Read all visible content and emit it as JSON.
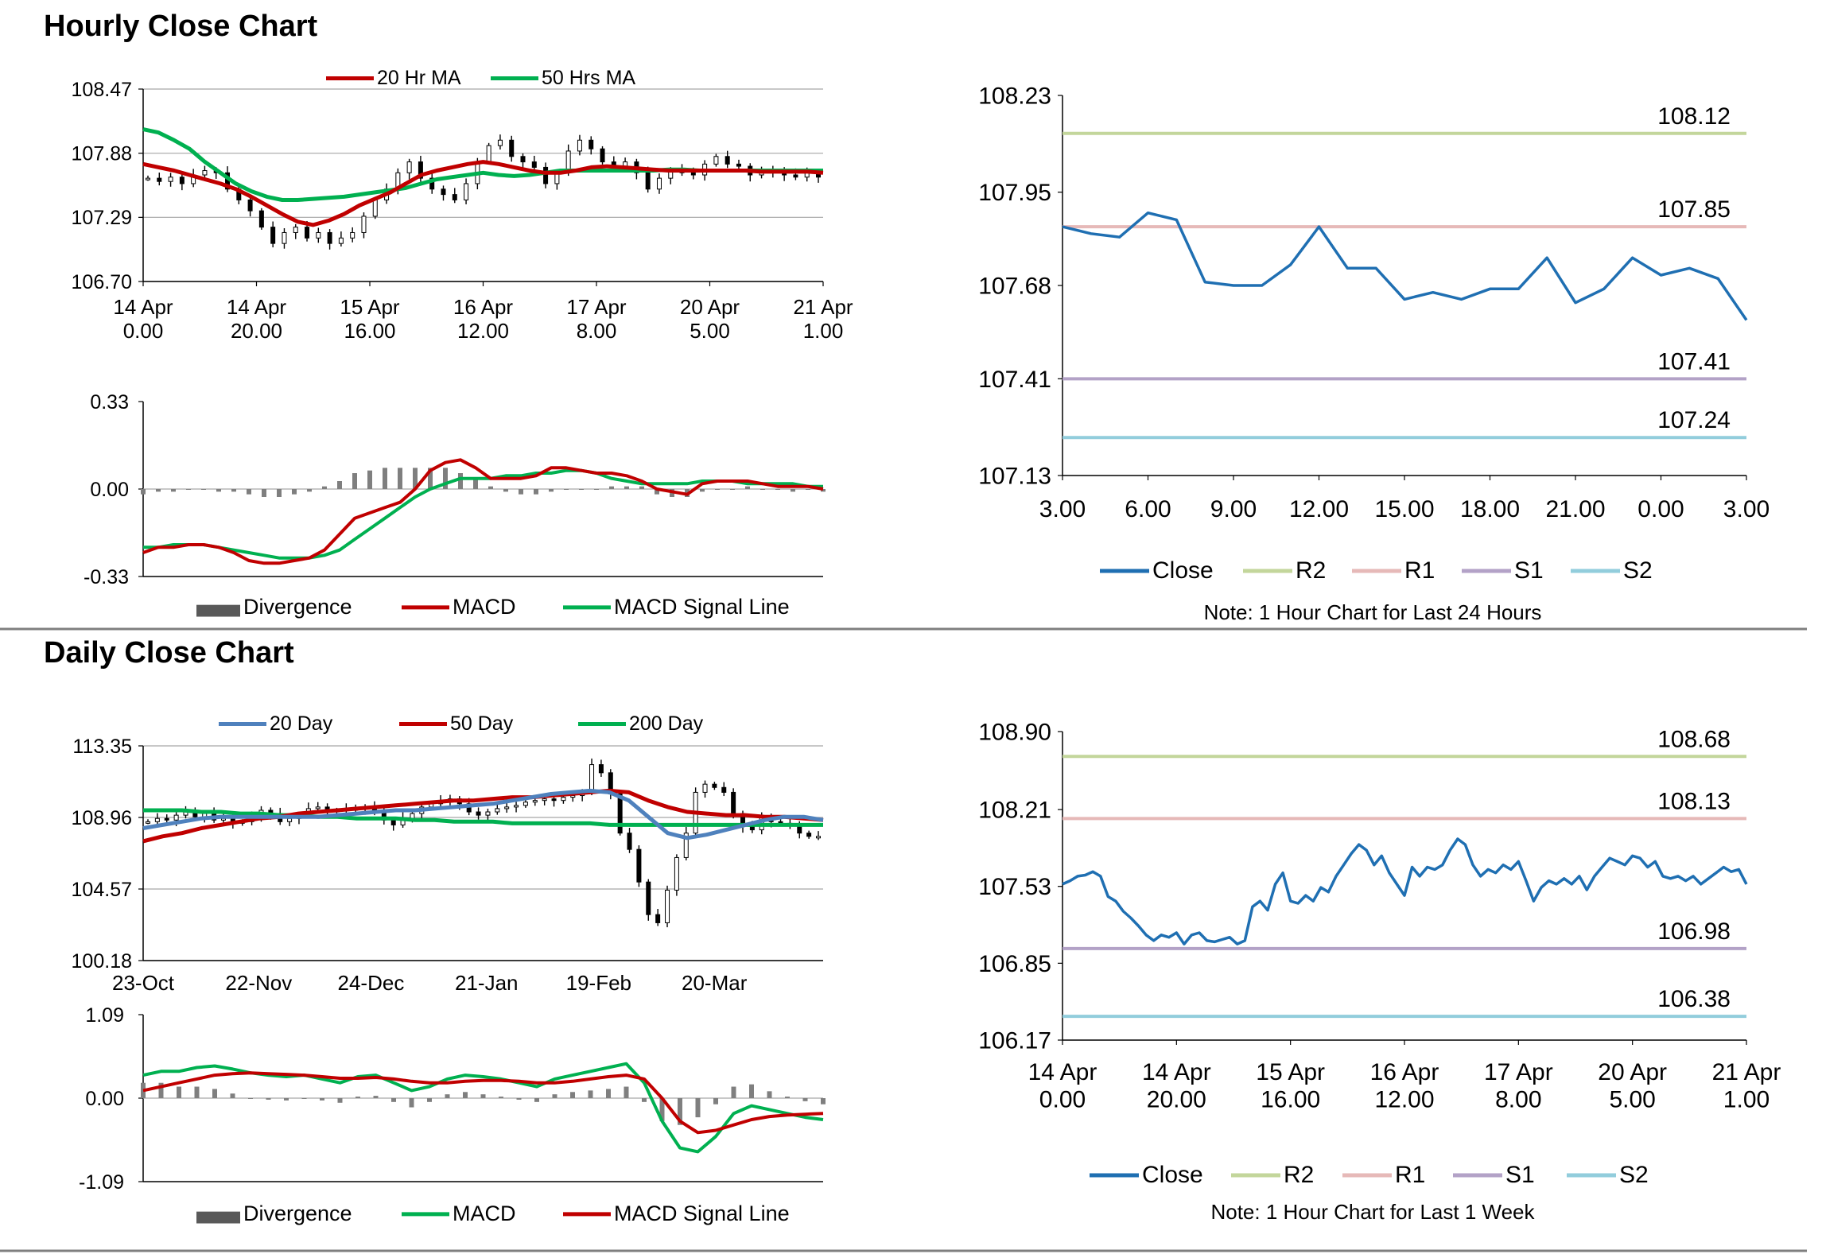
{
  "hourly_section": {
    "title": "Hourly Close Chart"
  },
  "daily_section": {
    "title": "Daily Close Chart"
  },
  "colors": {
    "ma_red": "#c00000",
    "ma_green": "#00b050",
    "ma_blue": "#4f81bd",
    "close_blue": "#1f6fb2",
    "r2": "#c3d69b",
    "r1": "#e6b9b8",
    "s1": "#b3a2c7",
    "s2": "#92cddc",
    "divergence": "#7f7f7f"
  },
  "chart_data": [
    {
      "id": "hourly_price",
      "type": "candlestick",
      "title": "",
      "yticks": [
        "108.47",
        "107.88",
        "107.29",
        "106.70"
      ],
      "ylim": [
        106.7,
        108.47
      ],
      "xticks": [
        [
          "14 Apr",
          "0.00"
        ],
        [
          "14 Apr",
          "20.00"
        ],
        [
          "15 Apr",
          "16.00"
        ],
        [
          "16 Apr",
          "12.00"
        ],
        [
          "17 Apr",
          "8.00"
        ],
        [
          "20 Apr",
          "5.00"
        ],
        [
          "21 Apr",
          "1.00"
        ]
      ],
      "legend": [
        "20 Hr MA",
        "50 Hrs MA"
      ],
      "close": [
        107.65,
        107.62,
        107.66,
        107.6,
        107.68,
        107.72,
        107.7,
        107.55,
        107.45,
        107.35,
        107.2,
        107.05,
        107.15,
        107.2,
        107.1,
        107.15,
        107.05,
        107.1,
        107.15,
        107.3,
        107.45,
        107.55,
        107.7,
        107.8,
        107.65,
        107.55,
        107.5,
        107.45,
        107.6,
        107.8,
        107.95,
        108.0,
        107.85,
        107.8,
        107.75,
        107.6,
        107.7,
        107.9,
        108.0,
        107.92,
        107.8,
        107.75,
        107.8,
        107.7,
        107.55,
        107.65,
        107.72,
        107.7,
        107.68,
        107.78,
        107.85,
        107.78,
        107.76,
        107.68,
        107.7,
        107.72,
        107.68,
        107.66,
        107.7,
        107.66
      ],
      "series": [
        {
          "name": "20 Hr MA",
          "values": [
            107.78,
            107.75,
            107.72,
            107.68,
            107.64,
            107.6,
            107.55,
            107.48,
            107.4,
            107.32,
            107.25,
            107.22,
            107.26,
            107.32,
            107.4,
            107.46,
            107.52,
            107.6,
            107.68,
            107.72,
            107.75,
            107.78,
            107.8,
            107.78,
            107.75,
            107.72,
            107.7,
            107.7,
            107.72,
            107.75,
            107.76,
            107.75,
            107.74,
            107.73,
            107.72,
            107.72,
            107.72,
            107.72,
            107.72,
            107.72,
            107.71,
            107.71,
            107.71,
            107.71,
            107.7
          ]
        },
        {
          "name": "50 Hrs MA",
          "values": [
            108.1,
            108.07,
            108.0,
            107.92,
            107.8,
            107.7,
            107.6,
            107.53,
            107.48,
            107.45,
            107.45,
            107.46,
            107.47,
            107.48,
            107.5,
            107.52,
            107.54,
            107.56,
            107.6,
            107.64,
            107.66,
            107.68,
            107.7,
            107.68,
            107.67,
            107.68,
            107.7,
            107.72,
            107.72,
            107.72,
            107.72,
            107.72,
            107.72,
            107.72,
            107.73,
            107.73,
            107.72,
            107.72,
            107.72,
            107.72,
            107.72,
            107.72,
            107.72,
            107.72,
            107.72
          ]
        }
      ]
    },
    {
      "id": "hourly_macd",
      "type": "line",
      "yticks": [
        "0.33",
        "0.00",
        "-0.33"
      ],
      "ylim": [
        -0.33,
        0.33
      ],
      "legend": [
        "Divergence",
        "MACD",
        "MACD Signal Line"
      ],
      "series": [
        {
          "name": "MACD",
          "values": [
            -0.24,
            -0.22,
            -0.22,
            -0.21,
            -0.21,
            -0.22,
            -0.24,
            -0.27,
            -0.28,
            -0.28,
            -0.27,
            -0.26,
            -0.23,
            -0.17,
            -0.11,
            -0.09,
            -0.07,
            -0.05,
            0.0,
            0.07,
            0.1,
            0.11,
            0.08,
            0.04,
            0.04,
            0.04,
            0.05,
            0.08,
            0.08,
            0.07,
            0.06,
            0.06,
            0.05,
            0.03,
            0.0,
            -0.01,
            -0.02,
            0.02,
            0.03,
            0.03,
            0.03,
            0.02,
            0.01,
            0.01,
            0.01,
            0.0
          ]
        },
        {
          "name": "MACD Signal Line",
          "values": [
            -0.22,
            -0.22,
            -0.21,
            -0.21,
            -0.21,
            -0.22,
            -0.23,
            -0.24,
            -0.25,
            -0.26,
            -0.26,
            -0.26,
            -0.25,
            -0.23,
            -0.19,
            -0.15,
            -0.11,
            -0.07,
            -0.03,
            0.0,
            0.02,
            0.04,
            0.04,
            0.04,
            0.05,
            0.05,
            0.06,
            0.06,
            0.07,
            0.07,
            0.06,
            0.04,
            0.03,
            0.02,
            0.02,
            0.02,
            0.02,
            0.03,
            0.03,
            0.03,
            0.02,
            0.02,
            0.02,
            0.02,
            0.01,
            0.01
          ]
        },
        {
          "name": "Divergence",
          "values": [
            -0.02,
            -0.01,
            -0.01,
            0.0,
            0.0,
            -0.01,
            -0.01,
            -0.02,
            -0.03,
            -0.03,
            -0.02,
            -0.01,
            0.01,
            0.03,
            0.06,
            0.07,
            0.08,
            0.08,
            0.08,
            0.08,
            0.08,
            0.06,
            0.04,
            0.01,
            -0.01,
            -0.02,
            -0.02,
            -0.01,
            0.0,
            0.0,
            0.0,
            0.01,
            0.01,
            0.01,
            -0.02,
            -0.03,
            -0.03,
            -0.01,
            0.0,
            0.0,
            0.01,
            0.0,
            0.0,
            -0.01,
            0.0,
            -0.01
          ]
        }
      ]
    },
    {
      "id": "hourly_close_24h",
      "type": "line",
      "yticks": [
        "108.23",
        "107.95",
        "107.68",
        "107.41",
        "107.13"
      ],
      "ylim": [
        107.13,
        108.23
      ],
      "xticks": [
        "3.00",
        "6.00",
        "9.00",
        "12.00",
        "15.00",
        "18.00",
        "21.00",
        "0.00",
        "3.00"
      ],
      "levels": [
        {
          "name": "R2",
          "value": "108.12"
        },
        {
          "name": "R1",
          "value": "107.85"
        },
        {
          "name": "S1",
          "value": "107.41"
        },
        {
          "name": "S2",
          "value": "107.24"
        }
      ],
      "legend": [
        "Close",
        "R2",
        "R1",
        "S1",
        "S2"
      ],
      "note": "Note: 1 Hour Chart for Last 24 Hours",
      "series": [
        {
          "name": "Close",
          "values": [
            107.85,
            107.83,
            107.82,
            107.89,
            107.87,
            107.69,
            107.68,
            107.68,
            107.74,
            107.85,
            107.73,
            107.73,
            107.64,
            107.66,
            107.64,
            107.67,
            107.67,
            107.76,
            107.63,
            107.67,
            107.76,
            107.71,
            107.73,
            107.7,
            107.58
          ]
        }
      ]
    },
    {
      "id": "daily_price",
      "type": "candlestick",
      "yticks": [
        "113.35",
        "108.96",
        "104.57",
        "100.18"
      ],
      "ylim": [
        100.18,
        113.35
      ],
      "xticks": [
        "23-Oct",
        "22-Nov",
        "24-Dec",
        "21-Jan",
        "19-Feb",
        "20-Mar"
      ],
      "legend": [
        "20 Day",
        "50 Day",
        "200 Day"
      ],
      "close": [
        108.7,
        108.9,
        108.8,
        109.1,
        109.3,
        109.0,
        109.2,
        108.8,
        108.9,
        108.6,
        108.7,
        109.0,
        109.4,
        109.2,
        108.7,
        108.9,
        109.1,
        109.5,
        109.6,
        109.3,
        109.4,
        109.5,
        109.5,
        109.6,
        109.3,
        108.8,
        108.5,
        108.9,
        109.2,
        109.6,
        109.8,
        110.0,
        110.1,
        109.8,
        109.3,
        109.1,
        109.3,
        109.5,
        109.6,
        109.7,
        109.9,
        110.0,
        110.1,
        110.0,
        110.2,
        110.3,
        110.5,
        112.2,
        111.7,
        110.4,
        108.0,
        107.0,
        105.0,
        103.0,
        102.5,
        104.5,
        106.5,
        108.0,
        110.5,
        111.0,
        110.8,
        110.5,
        109.2,
        108.4,
        108.2,
        109.0,
        108.7,
        108.6,
        108.5,
        108.0,
        107.8,
        107.8
      ],
      "series": [
        {
          "name": "20 Day",
          "values": [
            108.3,
            108.5,
            108.7,
            108.9,
            109.0,
            109.0,
            109.0,
            109.0,
            109.0,
            109.0,
            109.1,
            109.2,
            109.3,
            109.4,
            109.4,
            109.5,
            109.6,
            109.7,
            109.8,
            110.0,
            110.2,
            110.4,
            110.5,
            110.6,
            110.5,
            110.0,
            109.0,
            108.0,
            107.7,
            107.9,
            108.2,
            108.5,
            108.8,
            109.0,
            109.0,
            108.8
          ]
        },
        {
          "name": "50 Day",
          "values": [
            107.5,
            107.8,
            108.0,
            108.3,
            108.5,
            108.7,
            108.9,
            109.0,
            109.2,
            109.3,
            109.4,
            109.5,
            109.6,
            109.7,
            109.8,
            109.9,
            110.0,
            110.0,
            110.1,
            110.2,
            110.2,
            110.3,
            110.4,
            110.5,
            110.6,
            110.5,
            110.0,
            109.6,
            109.3,
            109.2,
            109.1,
            109.1,
            109.0,
            109.0,
            108.9,
            108.8
          ]
        },
        {
          "name": "200 Day",
          "values": [
            109.4,
            109.4,
            109.4,
            109.3,
            109.3,
            109.2,
            109.2,
            109.1,
            109.1,
            109.0,
            109.0,
            108.9,
            108.9,
            108.9,
            108.8,
            108.8,
            108.7,
            108.7,
            108.7,
            108.6,
            108.6,
            108.6,
            108.6,
            108.6,
            108.5,
            108.5,
            108.5,
            108.5,
            108.5,
            108.5,
            108.5,
            108.5,
            108.5,
            108.5,
            108.5,
            108.5
          ]
        }
      ]
    },
    {
      "id": "daily_macd",
      "type": "line",
      "yticks": [
        "1.09",
        "0.00",
        "-1.09"
      ],
      "ylim": [
        -1.09,
        1.09
      ],
      "legend": [
        "Divergence",
        "MACD",
        "MACD Signal Line"
      ],
      "series": [
        {
          "name": "MACD",
          "values": [
            0.3,
            0.35,
            0.35,
            0.4,
            0.42,
            0.38,
            0.33,
            0.3,
            0.28,
            0.3,
            0.25,
            0.2,
            0.28,
            0.3,
            0.2,
            0.1,
            0.15,
            0.25,
            0.3,
            0.28,
            0.25,
            0.2,
            0.15,
            0.25,
            0.3,
            0.35,
            0.4,
            0.45,
            0.2,
            -0.3,
            -0.65,
            -0.7,
            -0.5,
            -0.2,
            -0.1,
            -0.15,
            -0.2,
            -0.25,
            -0.28
          ]
        },
        {
          "name": "MACD Signal Line",
          "values": [
            0.1,
            0.15,
            0.2,
            0.25,
            0.3,
            0.32,
            0.33,
            0.32,
            0.31,
            0.3,
            0.28,
            0.26,
            0.26,
            0.27,
            0.25,
            0.22,
            0.2,
            0.2,
            0.22,
            0.23,
            0.23,
            0.22,
            0.2,
            0.2,
            0.22,
            0.25,
            0.28,
            0.3,
            0.25,
            0.0,
            -0.3,
            -0.45,
            -0.42,
            -0.35,
            -0.28,
            -0.24,
            -0.22,
            -0.21,
            -0.2
          ]
        },
        {
          "name": "Divergence",
          "values": [
            0.2,
            0.2,
            0.15,
            0.15,
            0.12,
            0.06,
            0.0,
            -0.02,
            -0.03,
            0.0,
            -0.03,
            -0.06,
            0.02,
            0.03,
            -0.05,
            -0.12,
            -0.05,
            0.05,
            0.08,
            0.05,
            0.02,
            -0.02,
            -0.05,
            0.05,
            0.08,
            0.1,
            0.12,
            0.15,
            -0.05,
            -0.3,
            -0.35,
            -0.25,
            -0.08,
            0.15,
            0.18,
            0.09,
            0.02,
            -0.04,
            -0.08
          ]
        }
      ]
    },
    {
      "id": "hourly_close_1w",
      "type": "line",
      "yticks": [
        "108.90",
        "108.21",
        "107.53",
        "106.85",
        "106.17"
      ],
      "ylim": [
        106.17,
        108.9
      ],
      "xticks": [
        [
          "14 Apr",
          "0.00"
        ],
        [
          "14 Apr",
          "20.00"
        ],
        [
          "15 Apr",
          "16.00"
        ],
        [
          "16 Apr",
          "12.00"
        ],
        [
          "17 Apr",
          "8.00"
        ],
        [
          "20 Apr",
          "5.00"
        ],
        [
          "21 Apr",
          "1.00"
        ]
      ],
      "levels": [
        {
          "name": "R2",
          "value": "108.68"
        },
        {
          "name": "R1",
          "value": "108.13"
        },
        {
          "name": "S1",
          "value": "106.98"
        },
        {
          "name": "S2",
          "value": "106.38"
        }
      ],
      "legend": [
        "Close",
        "R2",
        "R1",
        "S1",
        "S2"
      ],
      "note": "Note: 1 Hour Chart for Last 1 Week",
      "series": [
        {
          "name": "Close",
          "values": [
            107.55,
            107.58,
            107.62,
            107.63,
            107.66,
            107.62,
            107.44,
            107.4,
            107.31,
            107.25,
            107.18,
            107.1,
            107.05,
            107.1,
            107.08,
            107.12,
            107.02,
            107.1,
            107.12,
            107.05,
            107.04,
            107.06,
            107.08,
            107.02,
            107.05,
            107.35,
            107.4,
            107.32,
            107.55,
            107.65,
            107.4,
            107.38,
            107.45,
            107.4,
            107.52,
            107.48,
            107.62,
            107.72,
            107.82,
            107.9,
            107.85,
            107.72,
            107.8,
            107.65,
            107.55,
            107.45,
            107.7,
            107.62,
            107.7,
            107.68,
            107.72,
            107.85,
            107.95,
            107.9,
            107.72,
            107.62,
            107.68,
            107.65,
            107.72,
            107.68,
            107.75,
            107.58,
            107.4,
            107.52,
            107.58,
            107.55,
            107.6,
            107.55,
            107.62,
            107.5,
            107.62,
            107.7,
            107.78,
            107.75,
            107.72,
            107.8,
            107.78,
            107.7,
            107.75,
            107.62,
            107.6,
            107.62,
            107.58,
            107.62,
            107.55,
            107.6,
            107.65,
            107.7,
            107.66,
            107.68,
            107.55
          ]
        }
      ]
    }
  ]
}
